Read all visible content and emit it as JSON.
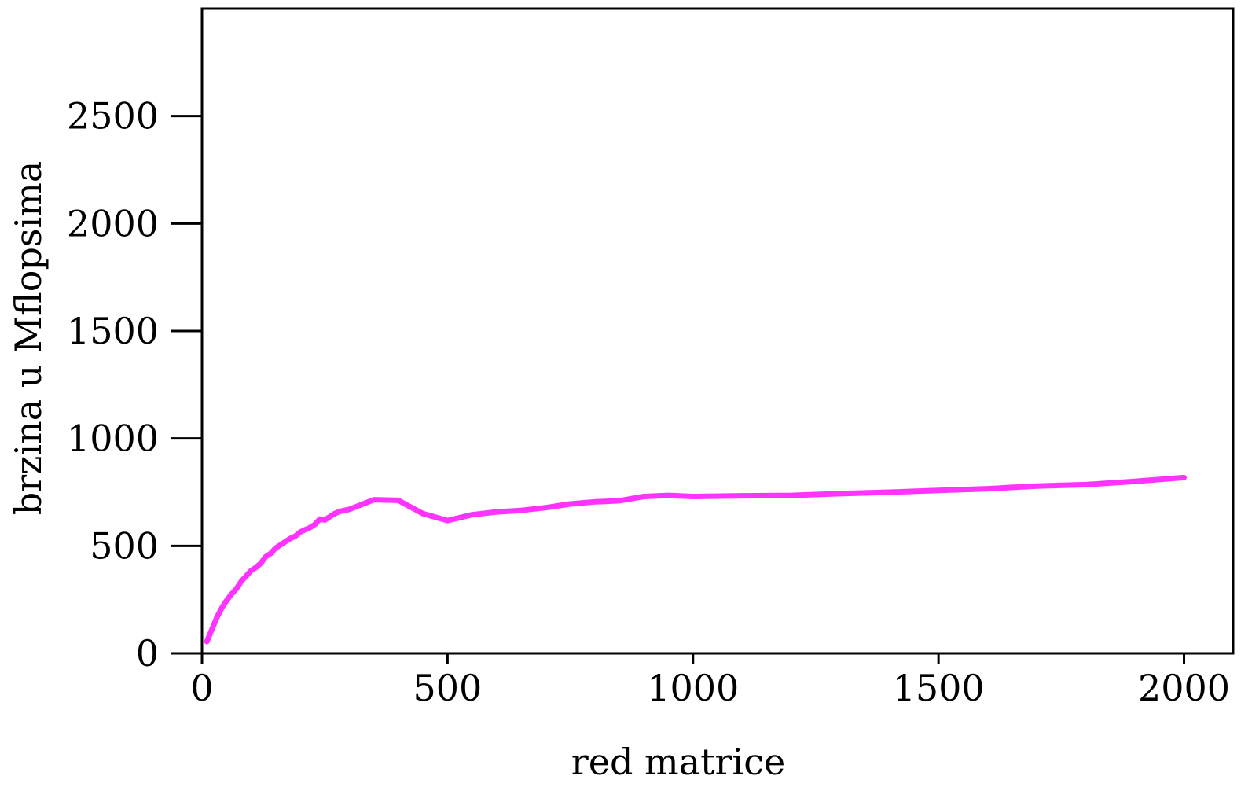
{
  "chart_data": {
    "type": "line",
    "title": "",
    "xlabel": "red matrice",
    "ylabel": "brzina u Mflopsima",
    "xlim": [
      0,
      2100
    ],
    "ylim": [
      0,
      3000
    ],
    "xticks": [
      0,
      500,
      1000,
      1500,
      2000
    ],
    "yticks": [
      0,
      500,
      1000,
      1500,
      2000,
      2500
    ],
    "xtick_labels": [
      "0",
      "500",
      "1000",
      "1500",
      "2000"
    ],
    "ytick_labels": [
      "0",
      "500",
      "1000",
      "1500",
      "2000",
      "2500"
    ],
    "grid": false,
    "legend": "none",
    "series": [
      {
        "color": "#ff33ff",
        "x": [
          10,
          20,
          30,
          40,
          50,
          60,
          70,
          80,
          90,
          100,
          110,
          120,
          130,
          140,
          150,
          160,
          170,
          180,
          190,
          200,
          210,
          220,
          230,
          240,
          250,
          260,
          270,
          280,
          290,
          300,
          350,
          400,
          450,
          500,
          550,
          600,
          650,
          700,
          750,
          800,
          850,
          900,
          950,
          1000,
          1100,
          1200,
          1300,
          1400,
          1500,
          1600,
          1700,
          1800,
          1900,
          2000
        ],
        "y": [
          55,
          110,
          165,
          210,
          245,
          275,
          300,
          335,
          360,
          385,
          400,
          420,
          450,
          465,
          490,
          505,
          520,
          535,
          545,
          565,
          575,
          585,
          600,
          625,
          620,
          635,
          650,
          660,
          665,
          670,
          715,
          712,
          650,
          618,
          645,
          658,
          665,
          678,
          695,
          705,
          710,
          730,
          735,
          730,
          733,
          735,
          743,
          750,
          758,
          766,
          778,
          785,
          800,
          818
        ]
      }
    ]
  }
}
